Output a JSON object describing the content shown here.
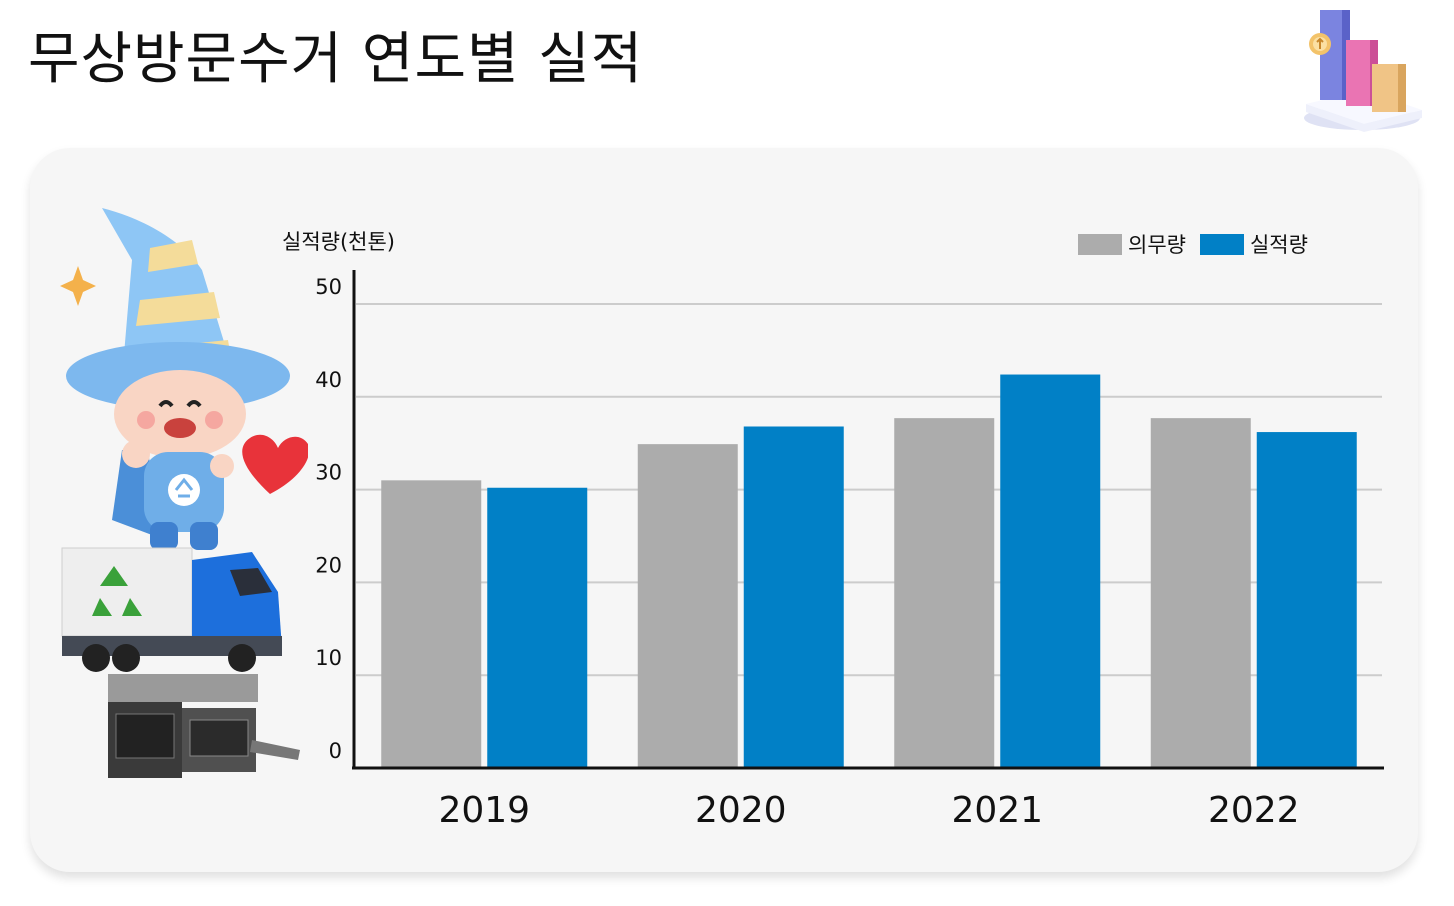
{
  "page": {
    "title": "무상방문수거 연도별 실적"
  },
  "chart_data": {
    "type": "bar",
    "categories": [
      "2019",
      "2020",
      "2021",
      "2022"
    ],
    "series": [
      {
        "name": "의무량",
        "values": [
          31.0,
          34.9,
          37.7,
          37.7
        ],
        "color": "#acacac"
      },
      {
        "name": "실적량",
        "values": [
          30.2,
          36.8,
          42.4,
          36.2
        ],
        "color": "#0180c6"
      }
    ],
    "title": "",
    "xlabel": "",
    "ylabel": "실적량(천톤)",
    "ylim": [
      0,
      50
    ],
    "yticks": [
      "0",
      "10",
      "20",
      "30",
      "40",
      "50"
    ],
    "grid": true,
    "legend_position": "top-right"
  },
  "decorations": {
    "header_icon": "bar-chart-3d-icon",
    "mascot": "wizard-mascot-with-recycling-truck-and-appliances"
  }
}
